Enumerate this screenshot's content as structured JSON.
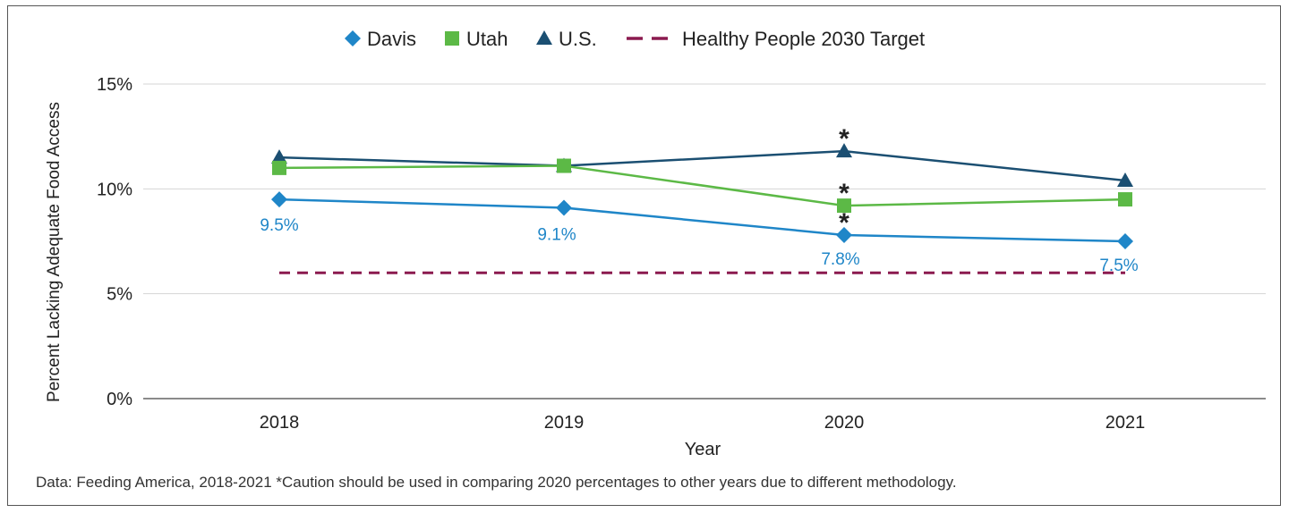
{
  "chart_data": {
    "type": "line",
    "xlabel": "Year",
    "ylabel": "Percent Lacking Adequate Food Access",
    "categories": [
      "2018",
      "2019",
      "2020",
      "2021"
    ],
    "ylim": [
      0,
      15
    ],
    "yticks": [
      "0%",
      "5%",
      "10%",
      "15%"
    ],
    "ytick_values": [
      0,
      5,
      10,
      15
    ],
    "grid": true,
    "legend_position": "top-center",
    "series": [
      {
        "name": "Davis",
        "values": [
          9.5,
          9.1,
          7.8,
          7.5
        ],
        "color": "#1f86c8",
        "marker": "diamond",
        "data_labels": [
          "9.5%",
          "9.1%",
          "7.8%",
          "7.5%"
        ]
      },
      {
        "name": "Utah",
        "values": [
          11.0,
          11.1,
          9.2,
          9.5
        ],
        "color": "#5cb946",
        "marker": "square"
      },
      {
        "name": "U.S.",
        "values": [
          11.5,
          11.1,
          11.8,
          10.4
        ],
        "color": "#1b4f72",
        "marker": "triangle"
      },
      {
        "name": "Healthy People 2030 Target",
        "values": [
          6.0,
          6.0,
          6.0,
          6.0
        ],
        "color": "#8b1a4f",
        "marker": "none",
        "dashed": true
      }
    ],
    "annotations": [
      {
        "text": "*",
        "series": "U.S.",
        "category": "2020"
      },
      {
        "text": "*",
        "series": "Utah",
        "category": "2020"
      },
      {
        "text": "*",
        "series": "Davis",
        "category": "2020"
      }
    ]
  },
  "footnote": "Data: Feeding America, 2018-2021 *Caution should be used in comparing 2020 percentages to other years due to different methodology."
}
